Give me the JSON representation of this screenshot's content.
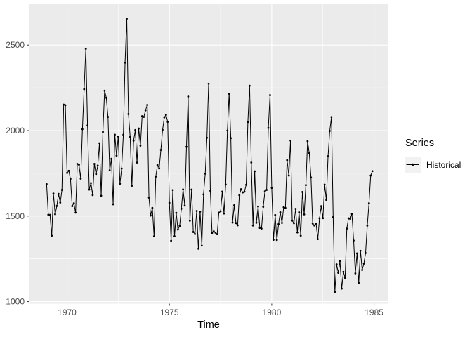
{
  "chart_data": {
    "type": "line",
    "title": "",
    "xlabel": "Time",
    "ylabel": "",
    "x_ticks": [
      1970,
      1975,
      1980,
      1985
    ],
    "x_minor_ticks": [
      1972.5,
      1977.5,
      1982.5
    ],
    "y_ticks": [
      1000,
      1500,
      2000,
      2500
    ],
    "y_minor_ticks": [
      1250,
      1750,
      2250
    ],
    "xlim": [
      1968.13,
      1985.7
    ],
    "ylim": [
      988,
      2739
    ],
    "grid": true,
    "legend": {
      "title": "Series",
      "position": "right"
    },
    "series": [
      {
        "name": "Historical",
        "marker": "point",
        "color": "#000000",
        "x_start": 1969.0,
        "frequency": 12,
        "values": [
          1687,
          1508,
          1507,
          1385,
          1632,
          1511,
          1559,
          1630,
          1579,
          1653,
          2152,
          2148,
          1752,
          1765,
          1717,
          1558,
          1575,
          1520,
          1805,
          1800,
          1719,
          2008,
          2242,
          2478,
          2030,
          1655,
          1693,
          1623,
          1805,
          1746,
          1795,
          1926,
          1619,
          1992,
          2233,
          2192,
          2080,
          1768,
          1835,
          1569,
          1976,
          1853,
          1965,
          1689,
          1778,
          1976,
          2397,
          2654,
          2097,
          1963,
          1677,
          1941,
          2003,
          1813,
          2012,
          1912,
          2084,
          2080,
          2118,
          2150,
          1608,
          1503,
          1548,
          1382,
          1731,
          1798,
          1779,
          1887,
          2004,
          2077,
          2092,
          2051,
          1577,
          1356,
          1652,
          1382,
          1519,
          1421,
          1442,
          1543,
          1656,
          1561,
          1905,
          2199,
          1473,
          1655,
          1407,
          1395,
          1530,
          1309,
          1526,
          1327,
          1627,
          1748,
          1958,
          2274,
          1648,
          1401,
          1411,
          1403,
          1394,
          1520,
          1528,
          1643,
          1515,
          1685,
          2000,
          2215,
          1956,
          1462,
          1563,
          1459,
          1446,
          1622,
          1657,
          1638,
          1643,
          1683,
          2050,
          2262,
          1813,
          1445,
          1762,
          1461,
          1556,
          1431,
          1427,
          1554,
          1645,
          1653,
          2016,
          2207,
          1665,
          1361,
          1506,
          1360,
          1453,
          1522,
          1460,
          1552,
          1548,
          1827,
          1737,
          1941,
          1474,
          1458,
          1542,
          1404,
          1522,
          1385,
          1641,
          1510,
          1681,
          1938,
          1868,
          1726,
          1456,
          1445,
          1456,
          1365,
          1487,
          1558,
          1488,
          1684,
          1594,
          1850,
          1998,
          2079,
          1494,
          1057,
          1218,
          1168,
          1236,
          1076,
          1174,
          1139,
          1427,
          1487,
          1483,
          1513,
          1357,
          1165,
          1282,
          1110,
          1297,
          1185,
          1222,
          1284,
          1444,
          1575,
          1737,
          1763
        ]
      }
    ]
  },
  "colors": {
    "figure_background": "#FFFFFF",
    "panel_background": "#EBEBEB",
    "grid": "#FFFFFF",
    "axis_text": "#4D4D4D",
    "tick_marks": "#333333",
    "series_line": "#000000",
    "legend_key_background": "#F2F2F2"
  }
}
